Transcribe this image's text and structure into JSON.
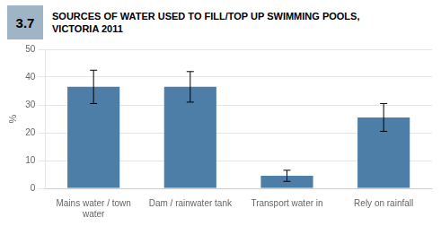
{
  "chart_data": {
    "type": "bar",
    "title": "SOURCES OF WATER USED TO FILL/TOP UP SWIMMING POOLS,\nVICTORIA 2011",
    "annotations": [
      "3.7"
    ],
    "y_label": "%",
    "categories": [
      "Mains water / town\nwater",
      "Dam / rainwater tank",
      "Transport water in",
      "Rely on rainfall"
    ],
    "values": [
      36.5,
      36.5,
      4.5,
      25.5
    ],
    "error_lower": [
      6.0,
      5.5,
      2.0,
      5.0
    ],
    "error_upper": [
      6.0,
      5.5,
      2.0,
      5.0
    ],
    "color": "#4d7ea8",
    "ylim": [
      0,
      50
    ],
    "yticks": [
      0,
      10,
      20,
      30,
      40,
      50
    ],
    "grid": true
  }
}
